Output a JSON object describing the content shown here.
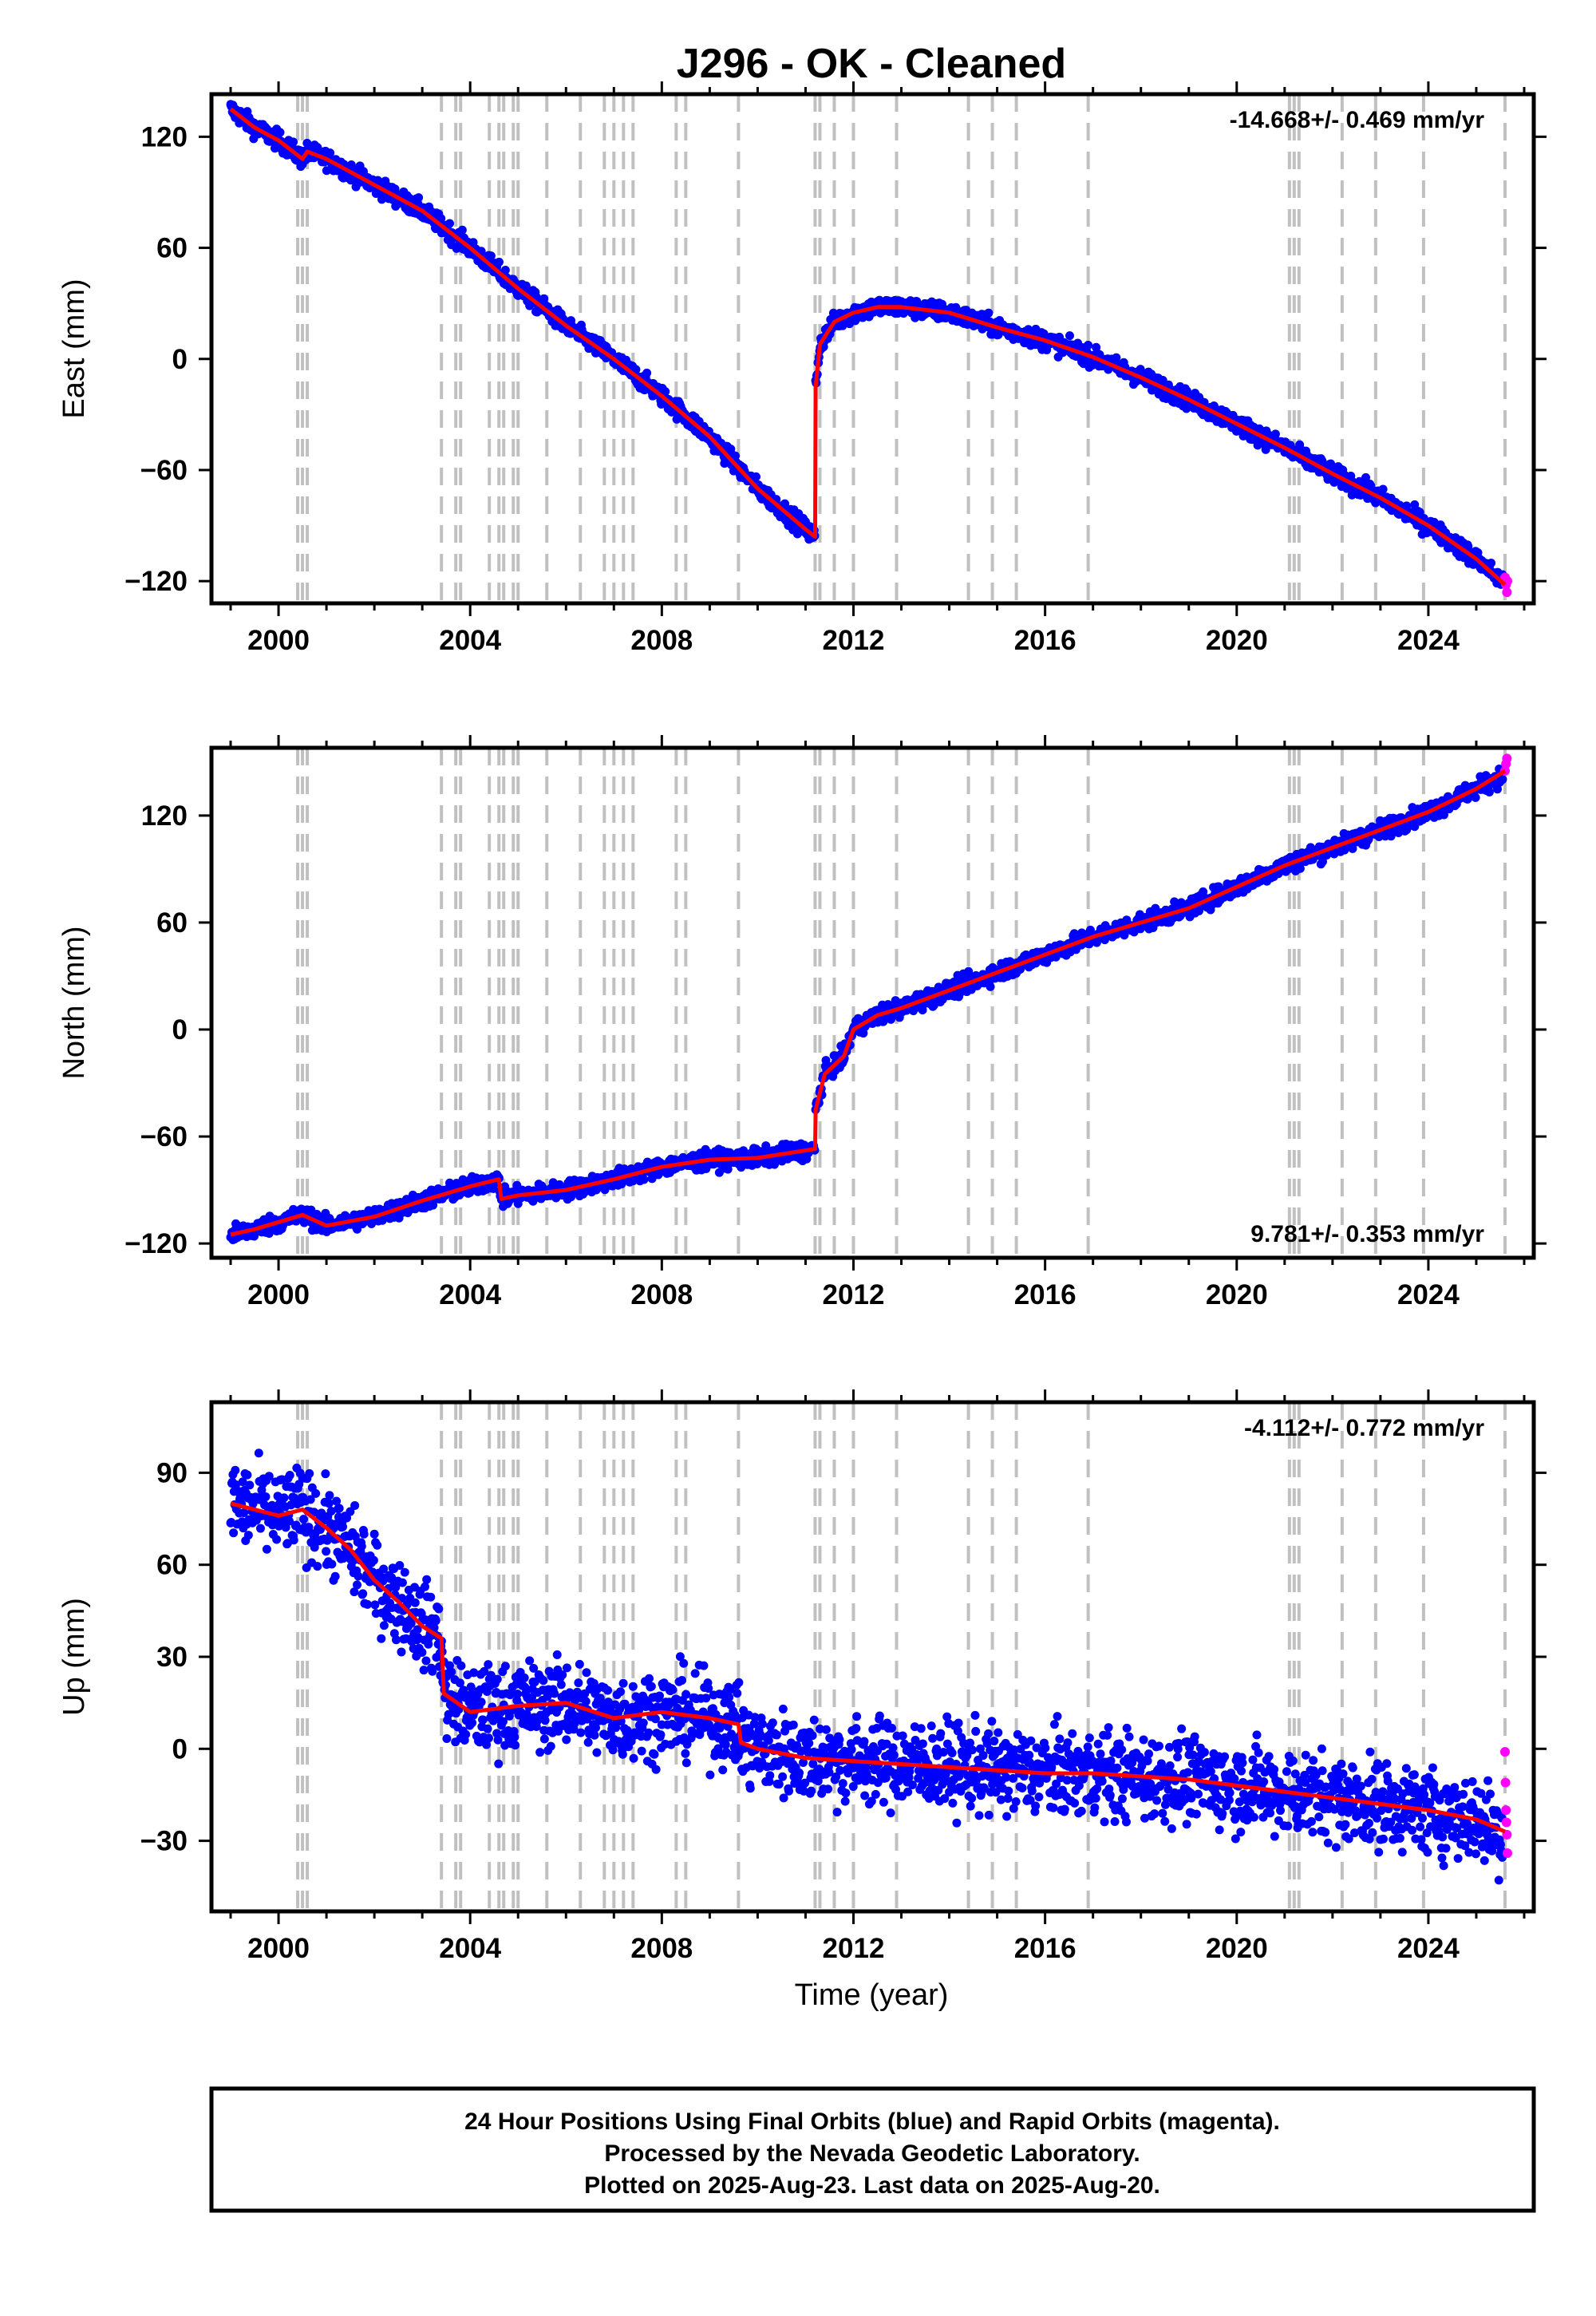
{
  "title": "J296  - OK - Cleaned",
  "xlabel": "Time (year)",
  "x_ticks": [
    2000,
    2004,
    2008,
    2012,
    2016,
    2020,
    2024
  ],
  "xlim": [
    1998.6,
    2026.2
  ],
  "colors": {
    "final_orbits": "#0000ff",
    "rapid_orbits": "#ff00ff",
    "model": "#ff0000",
    "event_lines": "#c0c0c0"
  },
  "event_lines": [
    2000.4,
    2000.5,
    2000.6,
    2003.4,
    2003.7,
    2003.8,
    2004.4,
    2004.6,
    2004.7,
    2004.9,
    2005.0,
    2005.6,
    2006.3,
    2006.8,
    2007.0,
    2007.2,
    2007.4,
    2008.3,
    2008.5,
    2009.6,
    2011.2,
    2011.3,
    2011.6,
    2012.0,
    2012.9,
    2014.4,
    2014.9,
    2015.4,
    2016.9,
    2021.1,
    2021.2,
    2021.3,
    2022.2,
    2022.9,
    2023.9,
    2025.6
  ],
  "footer": {
    "line1": "24 Hour Positions Using Final Orbits (blue) and Rapid Orbits (magenta).",
    "line2": "Processed by the Nevada Geodetic Laboratory.",
    "line3": "Plotted on 2025-Aug-23. Last data on 2025-Aug-20."
  },
  "chart_data": [
    {
      "type": "scatter",
      "ylabel": "East (mm)",
      "ylim": [
        -132,
        143
      ],
      "y_ticks": [
        120,
        60,
        0,
        -60,
        -120
      ],
      "rate_label": "-14.668+/- 0.469 mm/yr",
      "rate_position": "top-right",
      "noise_mm": 2.5,
      "series": [
        {
          "name": "Final Orbits",
          "color": "#0000ff",
          "x": [
            1999.0,
            1999.5,
            2000.0,
            2000.5,
            2000.6,
            2001.0,
            2002.0,
            2003.0,
            2004.0,
            2005.0,
            2006.0,
            2007.0,
            2008.0,
            2009.0,
            2010.0,
            2011.0,
            2011.2
          ],
          "y": [
            135,
            125,
            118,
            108,
            112,
            108,
            94,
            80,
            60,
            38,
            18,
            0,
            -20,
            -42,
            -70,
            -92,
            -96
          ]
        },
        {
          "name": "Final Orbits",
          "color": "#0000ff",
          "x": [
            2011.21,
            2011.3,
            2011.6,
            2012.0,
            2012.5,
            2013.0,
            2014.0,
            2015.0,
            2016.0,
            2017.0,
            2018.0,
            2019.0,
            2020.0,
            2021.0,
            2022.0,
            2023.0,
            2024.0,
            2025.0,
            2025.55
          ],
          "y": [
            -15,
            8,
            20,
            25,
            28,
            28,
            25,
            17,
            10,
            1,
            -10,
            -22,
            -35,
            -48,
            -62,
            -75,
            -90,
            -108,
            -120
          ]
        },
        {
          "name": "Rapid Orbits",
          "color": "#ff00ff",
          "x": [
            2025.6,
            2025.62,
            2025.64,
            2025.65
          ],
          "y": [
            -118,
            -122,
            -126,
            -120
          ]
        }
      ],
      "model": {
        "x": [
          1999.0,
          1999.5,
          2000.0,
          2000.5,
          2000.6,
          2001.0,
          2002.0,
          2003.0,
          2004.0,
          2005.0,
          2006.0,
          2007.0,
          2008.0,
          2009.0,
          2010.0,
          2011.0,
          2011.2,
          2011.21,
          2011.3,
          2011.6,
          2012.0,
          2012.5,
          2013.0,
          2014.0,
          2015.0,
          2016.0,
          2017.0,
          2018.0,
          2019.0,
          2020.0,
          2021.0,
          2022.0,
          2023.0,
          2024.0,
          2025.0,
          2025.6
        ],
        "y": [
          135,
          125,
          118,
          108,
          112,
          108,
          94,
          80,
          60,
          38,
          18,
          0,
          -20,
          -42,
          -70,
          -92,
          -96,
          -15,
          8,
          20,
          25,
          28,
          28,
          25,
          17,
          10,
          1,
          -10,
          -22,
          -35,
          -48,
          -62,
          -75,
          -90,
          -108,
          -122
        ]
      }
    },
    {
      "type": "scatter",
      "ylabel": "North (mm)",
      "ylim": [
        -128,
        158
      ],
      "y_ticks": [
        120,
        60,
        0,
        -60,
        -120
      ],
      "rate_label": "9.781+/- 0.353 mm/yr",
      "rate_position": "bottom-right",
      "noise_mm": 2.5,
      "series": [
        {
          "name": "Final Orbits",
          "color": "#0000ff",
          "x": [
            1999.0,
            1999.5,
            2000.0,
            2000.5,
            2001.0,
            2002.0,
            2003.0,
            2004.0,
            2004.6,
            2004.65,
            2005.0,
            2006.0,
            2007.0,
            2008.0,
            2009.0,
            2010.0,
            2011.2
          ],
          "y": [
            -115,
            -112,
            -108,
            -104,
            -110,
            -105,
            -96,
            -88,
            -84,
            -95,
            -93,
            -90,
            -84,
            -77,
            -73,
            -72,
            -67
          ]
        },
        {
          "name": "Final Orbits",
          "color": "#0000ff",
          "x": [
            2011.21,
            2011.4,
            2011.8,
            2012.0,
            2012.5,
            2013.0,
            2014.0,
            2015.0,
            2016.0,
            2017.0,
            2018.0,
            2019.0,
            2020.0,
            2021.0,
            2022.0,
            2023.0,
            2024.0,
            2025.0,
            2025.55
          ],
          "y": [
            -45,
            -25,
            -15,
            0,
            8,
            12,
            22,
            32,
            42,
            52,
            60,
            68,
            80,
            92,
            102,
            112,
            122,
            135,
            142
          ]
        },
        {
          "name": "Rapid Orbits",
          "color": "#ff00ff",
          "x": [
            2025.6,
            2025.62,
            2025.64
          ],
          "y": [
            145,
            149,
            152
          ]
        }
      ],
      "model": {
        "x": [
          1999.0,
          1999.5,
          2000.0,
          2000.5,
          2001.0,
          2002.0,
          2003.0,
          2004.0,
          2004.6,
          2004.65,
          2005.0,
          2006.0,
          2007.0,
          2008.0,
          2009.0,
          2010.0,
          2011.2,
          2011.21,
          2011.4,
          2011.8,
          2012.0,
          2012.5,
          2013.0,
          2014.0,
          2015.0,
          2016.0,
          2017.0,
          2018.0,
          2019.0,
          2020.0,
          2021.0,
          2022.0,
          2023.0,
          2024.0,
          2025.0,
          2025.6
        ],
        "y": [
          -115,
          -112,
          -108,
          -104,
          -110,
          -105,
          -96,
          -88,
          -84,
          -95,
          -93,
          -90,
          -84,
          -77,
          -73,
          -72,
          -67,
          -45,
          -25,
          -15,
          0,
          8,
          12,
          22,
          32,
          42,
          52,
          60,
          68,
          80,
          92,
          102,
          112,
          122,
          135,
          145
        ]
      }
    },
    {
      "type": "scatter",
      "ylabel": "Up (mm)",
      "ylim": [
        -53,
        113
      ],
      "y_ticks": [
        90,
        60,
        30,
        0,
        -30
      ],
      "rate_label": "-4.112+/- 0.772 mm/yr",
      "rate_position": "top-right",
      "noise_mm": 7,
      "series": [
        {
          "name": "Final Orbits",
          "color": "#0000ff",
          "x": [
            1999.0,
            1999.5,
            2000.0,
            2000.5,
            2001.0,
            2001.5,
            2002.0,
            2002.5,
            2003.0,
            2003.4,
            2003.45,
            2004.0,
            2005.0,
            2006.0,
            2007.0,
            2008.0,
            2009.0,
            2009.6,
            2009.65,
            2010.0,
            2011.0,
            2012.0,
            2013.0,
            2014.0,
            2015.0,
            2016.0,
            2017.0,
            2018.0,
            2019.0,
            2020.0,
            2021.0,
            2022.0,
            2023.0,
            2024.0,
            2025.0,
            2025.55
          ],
          "y": [
            80,
            78,
            76,
            78,
            72,
            65,
            55,
            48,
            40,
            36,
            18,
            12,
            14,
            15,
            10,
            12,
            10,
            8,
            2,
            0,
            -3,
            -4,
            -5,
            -6,
            -7,
            -8,
            -8,
            -9,
            -10,
            -12,
            -14,
            -16,
            -18,
            -20,
            -23,
            -27
          ]
        },
        {
          "name": "Rapid Orbits",
          "color": "#ff00ff",
          "x": [
            2025.6,
            2025.61,
            2025.62,
            2025.63,
            2025.64,
            2025.65
          ],
          "y": [
            -1,
            -11,
            -20,
            -24,
            -28,
            -34
          ]
        }
      ],
      "model": {
        "x": [
          1999.0,
          1999.5,
          2000.0,
          2000.5,
          2001.0,
          2001.5,
          2002.0,
          2002.5,
          2003.0,
          2003.4,
          2003.45,
          2004.0,
          2005.0,
          2006.0,
          2007.0,
          2008.0,
          2009.0,
          2009.6,
          2009.65,
          2010.0,
          2011.0,
          2012.0,
          2013.0,
          2014.0,
          2015.0,
          2016.0,
          2017.0,
          2018.0,
          2019.0,
          2020.0,
          2021.0,
          2022.0,
          2023.0,
          2024.0,
          2025.0,
          2025.6
        ],
        "y": [
          80,
          78,
          76,
          78,
          72,
          65,
          55,
          48,
          40,
          36,
          18,
          12,
          14,
          15,
          10,
          12,
          10,
          8,
          2,
          0,
          -3,
          -4,
          -5,
          -6,
          -7,
          -8,
          -8,
          -9,
          -10,
          -12,
          -14,
          -16,
          -18,
          -20,
          -23,
          -27
        ]
      }
    }
  ]
}
